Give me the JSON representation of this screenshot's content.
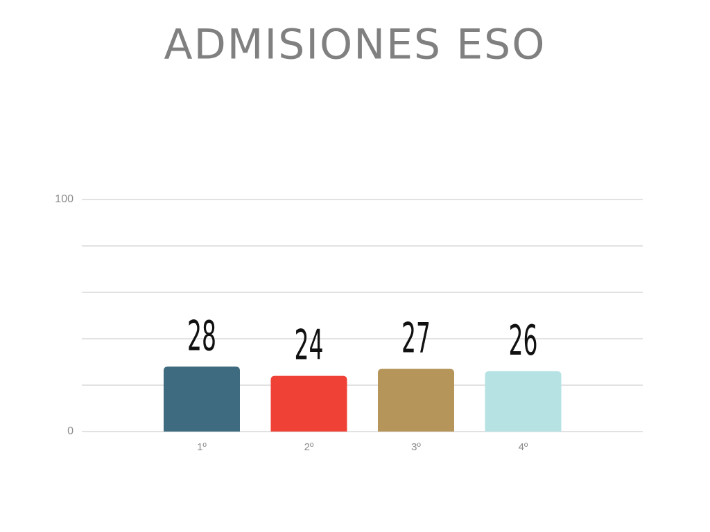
{
  "chart_data": {
    "type": "bar",
    "title": "ADMISIONES ESO",
    "categories": [
      "1º",
      "2º",
      "3º",
      "4º"
    ],
    "values": [
      28,
      24,
      27,
      26
    ],
    "colors": [
      "#3e6b7f",
      "#ef4136",
      "#b5955a",
      "#b7e2e4"
    ],
    "ylim": [
      0,
      100
    ],
    "yticks": [
      0,
      100
    ],
    "ygrid": [
      0,
      20,
      40,
      60,
      80,
      100
    ]
  }
}
